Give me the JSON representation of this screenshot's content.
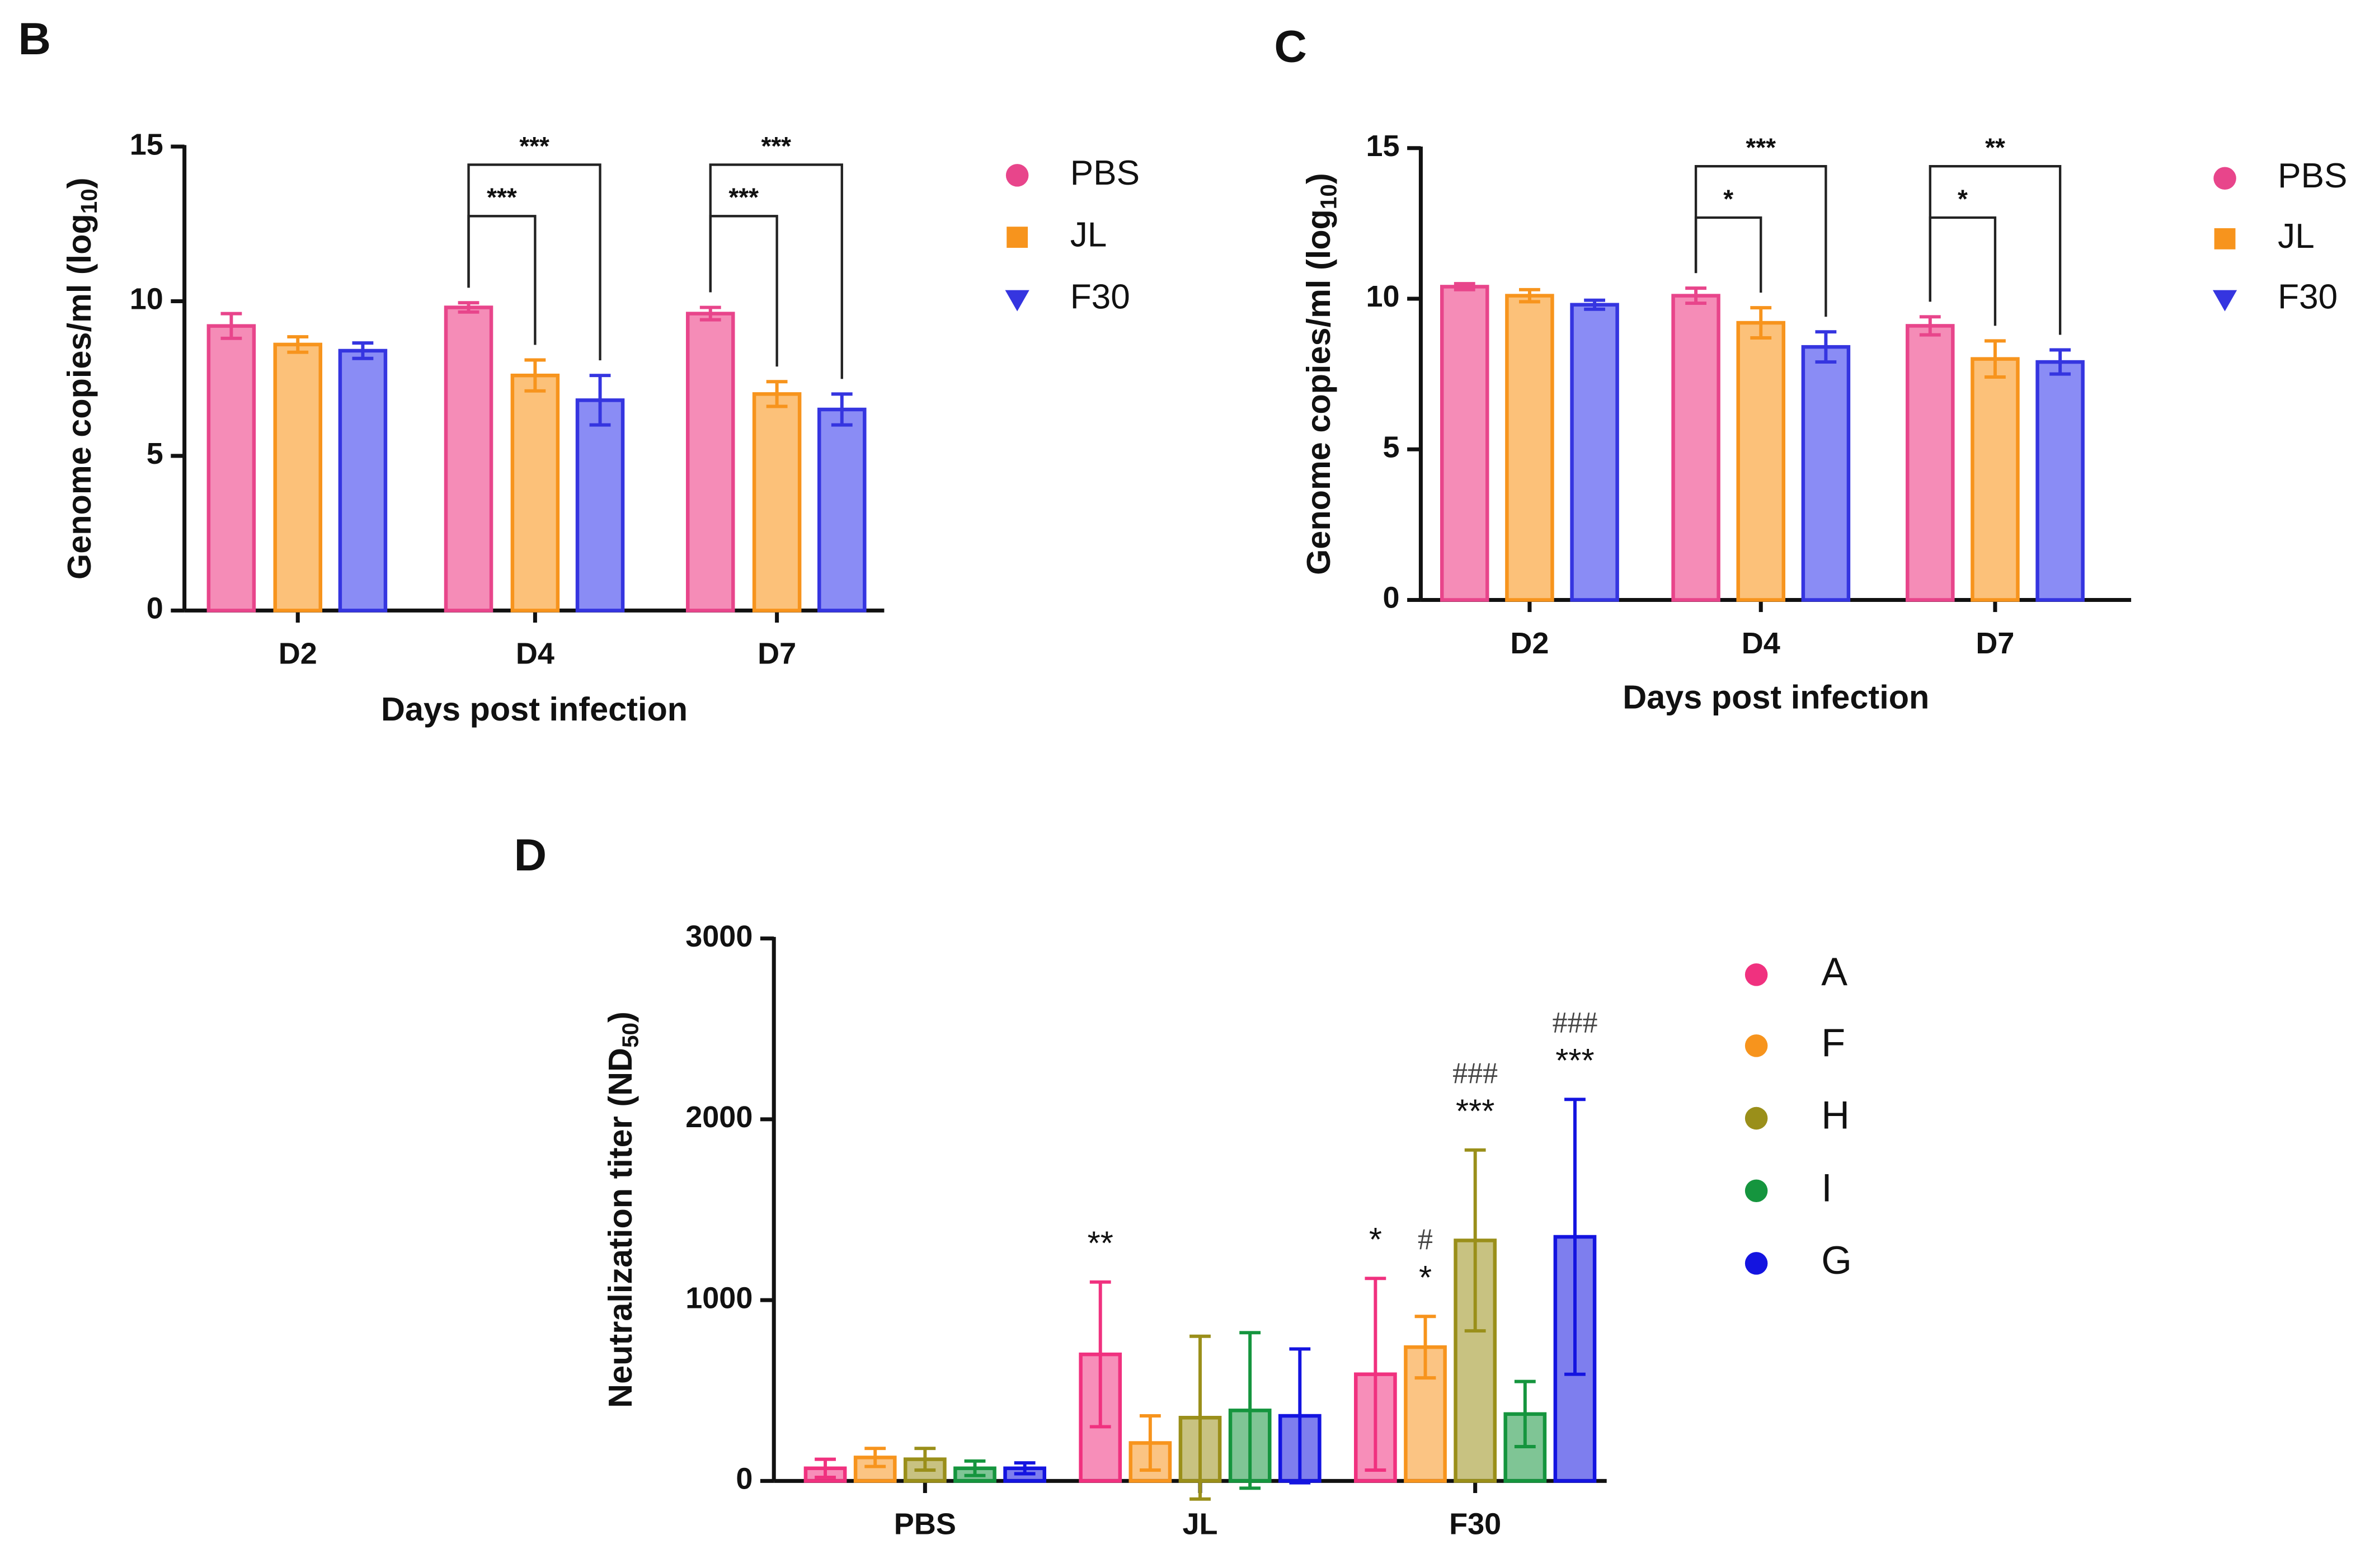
{
  "chart_data": [
    {
      "type": "bar",
      "panel": "B",
      "y_label": {
        "text": "Genome copies/ml (log",
        "subscript": "10",
        "suffix": ")"
      },
      "x_label": "Days post infection",
      "categories": [
        "D2",
        "D4",
        "D7"
      ],
      "ylim": [
        0,
        15
      ],
      "yticks": [
        0,
        5,
        10,
        15
      ],
      "series": [
        {
          "name": "PBS",
          "marker": "circle",
          "color": "#e8458b",
          "fill": "#f58cb7",
          "values": [
            9.2,
            9.8,
            9.6
          ],
          "errors": [
            0.4,
            0.15,
            0.2
          ]
        },
        {
          "name": "JL",
          "marker": "square",
          "color": "#f7941d",
          "fill": "#fcc179",
          "values": [
            8.6,
            7.6,
            7.0
          ],
          "errors": [
            0.25,
            0.5,
            0.4
          ]
        },
        {
          "name": "F30",
          "marker": "triangle",
          "color": "#3535e0",
          "fill": "#8a8cf5",
          "values": [
            8.4,
            6.8,
            6.5
          ],
          "errors": [
            0.25,
            0.8,
            0.5
          ]
        }
      ],
      "annotations": [
        {
          "label": "***",
          "category": "D4",
          "from": "PBS",
          "to": "JL"
        },
        {
          "label": "***",
          "category": "D4",
          "from": "PBS",
          "to": "F30"
        },
        {
          "label": "***",
          "category": "D7",
          "from": "PBS",
          "to": "JL"
        },
        {
          "label": "***",
          "category": "D7",
          "from": "PBS",
          "to": "F30"
        }
      ]
    },
    {
      "type": "bar",
      "panel": "C",
      "y_label": {
        "text": "Genome copies/ml (log",
        "subscript": "10",
        "suffix": ")"
      },
      "x_label": "Days post infection",
      "categories": [
        "D2",
        "D4",
        "D7"
      ],
      "ylim": [
        0,
        15
      ],
      "yticks": [
        0,
        5,
        10,
        15
      ],
      "series": [
        {
          "name": "PBS",
          "marker": "circle",
          "color": "#e8458b",
          "fill": "#f58cb7",
          "values": [
            10.4,
            10.1,
            9.1
          ],
          "errors": [
            0.1,
            0.25,
            0.3
          ]
        },
        {
          "name": "JL",
          "marker": "square",
          "color": "#f7941d",
          "fill": "#fcc179",
          "values": [
            10.1,
            9.2,
            8.0
          ],
          "errors": [
            0.2,
            0.5,
            0.6
          ]
        },
        {
          "name": "F30",
          "marker": "triangle",
          "color": "#3535e0",
          "fill": "#8a8cf5",
          "values": [
            9.8,
            8.4,
            7.9
          ],
          "errors": [
            0.15,
            0.5,
            0.4
          ]
        }
      ],
      "annotations": [
        {
          "label": "*",
          "category": "D4",
          "from": "PBS",
          "to": "JL"
        },
        {
          "label": "***",
          "category": "D4",
          "from": "PBS",
          "to": "F30"
        },
        {
          "label": "*",
          "category": "D7",
          "from": "PBS",
          "to": "JL"
        },
        {
          "label": "**",
          "category": "D7",
          "from": "PBS",
          "to": "F30"
        }
      ]
    },
    {
      "type": "bar",
      "panel": "D",
      "y_label": {
        "text": "Neutralization titer (ND",
        "subscript": "50",
        "suffix": ")"
      },
      "categories": [
        "PBS",
        "JL",
        "F30"
      ],
      "ylim": [
        0,
        3000
      ],
      "yticks": [
        0,
        1000,
        2000,
        3000
      ],
      "series": [
        {
          "name": "A",
          "marker": "circle",
          "color": "#f0317f",
          "values": [
            70,
            700,
            590
          ],
          "errors": [
            50,
            400,
            530
          ]
        },
        {
          "name": "F",
          "marker": "circle",
          "color": "#f7941d",
          "values": [
            130,
            210,
            740
          ],
          "errors": [
            50,
            150,
            170
          ]
        },
        {
          "name": "H",
          "marker": "circle",
          "color": "#9a8f1a",
          "values": [
            120,
            350,
            1330
          ],
          "errors": [
            60,
            450,
            500
          ]
        },
        {
          "name": "I",
          "marker": "circle",
          "color": "#15953e",
          "values": [
            70,
            390,
            370
          ],
          "errors": [
            40,
            430,
            180
          ]
        },
        {
          "name": "G",
          "marker": "circle",
          "color": "#1414e0",
          "values": [
            70,
            360,
            1350
          ],
          "errors": [
            30,
            370,
            760
          ]
        }
      ],
      "annotations": [
        {
          "category": "JL",
          "series": "A",
          "labels": [
            "**"
          ]
        },
        {
          "category": "F30",
          "series": "A",
          "labels": [
            "*"
          ]
        },
        {
          "category": "F30",
          "series": "F",
          "labels": [
            "#",
            "*"
          ]
        },
        {
          "category": "F30",
          "series": "H",
          "labels": [
            "###",
            "***"
          ]
        },
        {
          "category": "F30",
          "series": "G",
          "labels": [
            "###",
            "***"
          ]
        }
      ]
    }
  ]
}
